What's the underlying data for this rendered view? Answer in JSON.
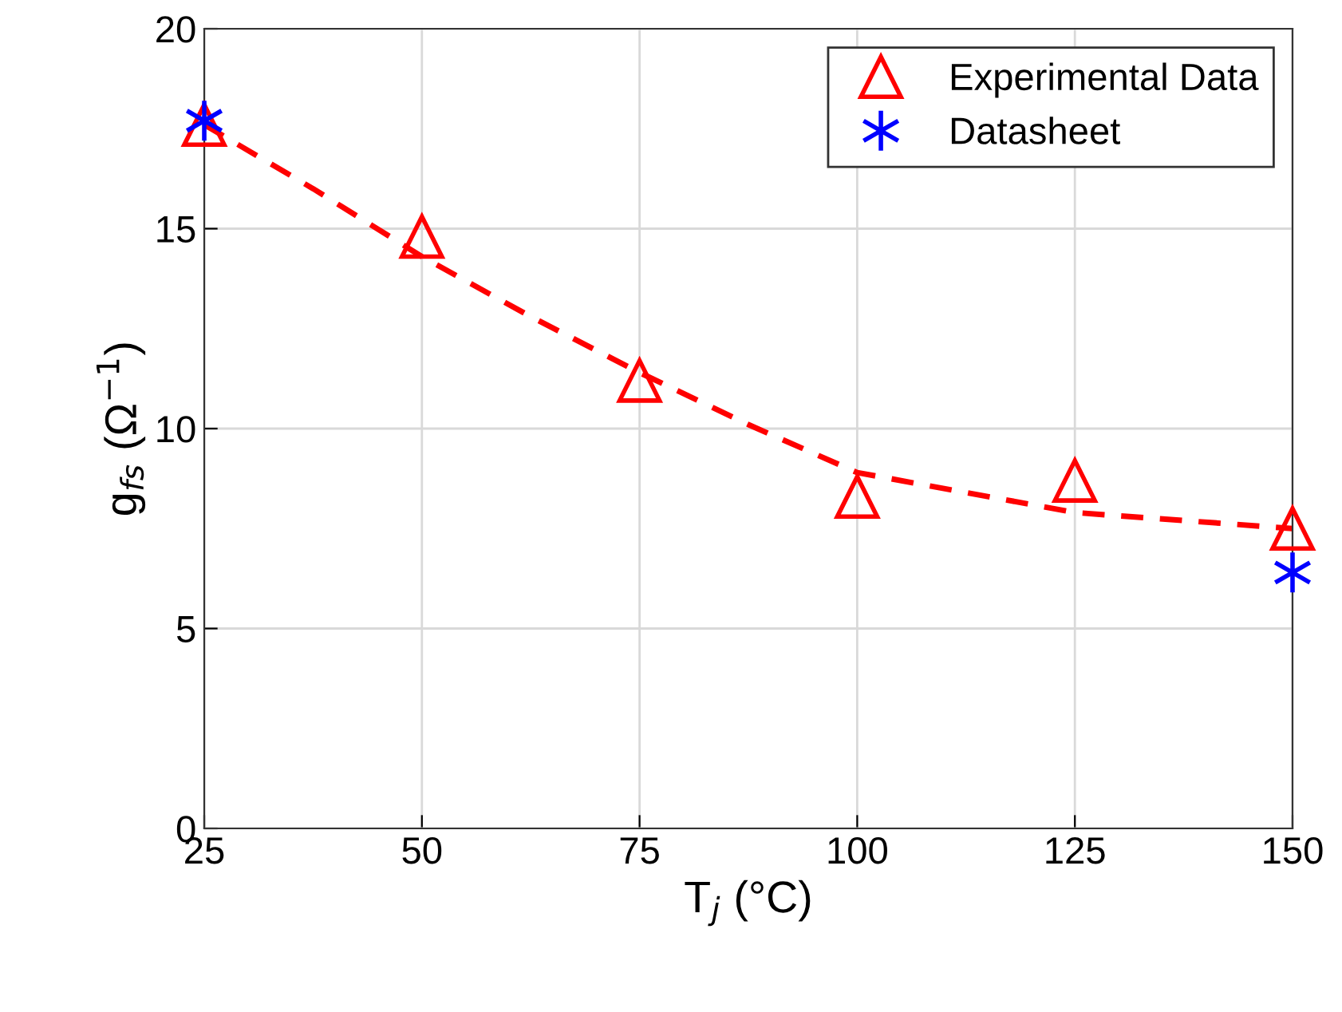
{
  "chart_data": {
    "type": "scatter",
    "xlabel": "T$_{j}$ (°C)",
    "ylabel": "g$_{fs}$ (Ω$^{−1}$)",
    "xlim": [
      25,
      150
    ],
    "xticks": [
      25,
      50,
      75,
      100,
      125,
      150
    ],
    "ylim": [
      0,
      20
    ],
    "yticks": [
      0,
      5,
      10,
      15,
      20
    ],
    "grid": true,
    "legend": "top right",
    "series": [
      {
        "type": "line",
        "color": "#ff0000",
        "line_style": "dashed",
        "marker": "none",
        "x": [
          25,
          37.5,
          50,
          62.5,
          75,
          87.5,
          100,
          112.5,
          125,
          137.5,
          150
        ],
        "values": [
          17.6,
          16.0,
          14.3,
          12.8,
          11.4,
          10.1,
          8.9,
          8.4,
          7.9,
          7.7,
          7.5
        ]
      },
      {
        "name": "Experimental Data",
        "color": "#ff0000",
        "marker": "triangle",
        "x": [
          25,
          50,
          75,
          100,
          125,
          150
        ],
        "values": [
          17.6,
          14.8,
          11.2,
          8.3,
          8.7,
          7.5
        ]
      },
      {
        "name": "Datasheet",
        "color": "#0000ff",
        "marker": "cross",
        "x": [
          25,
          150
        ],
        "values": [
          17.7,
          6.4
        ]
      }
    ]
  }
}
